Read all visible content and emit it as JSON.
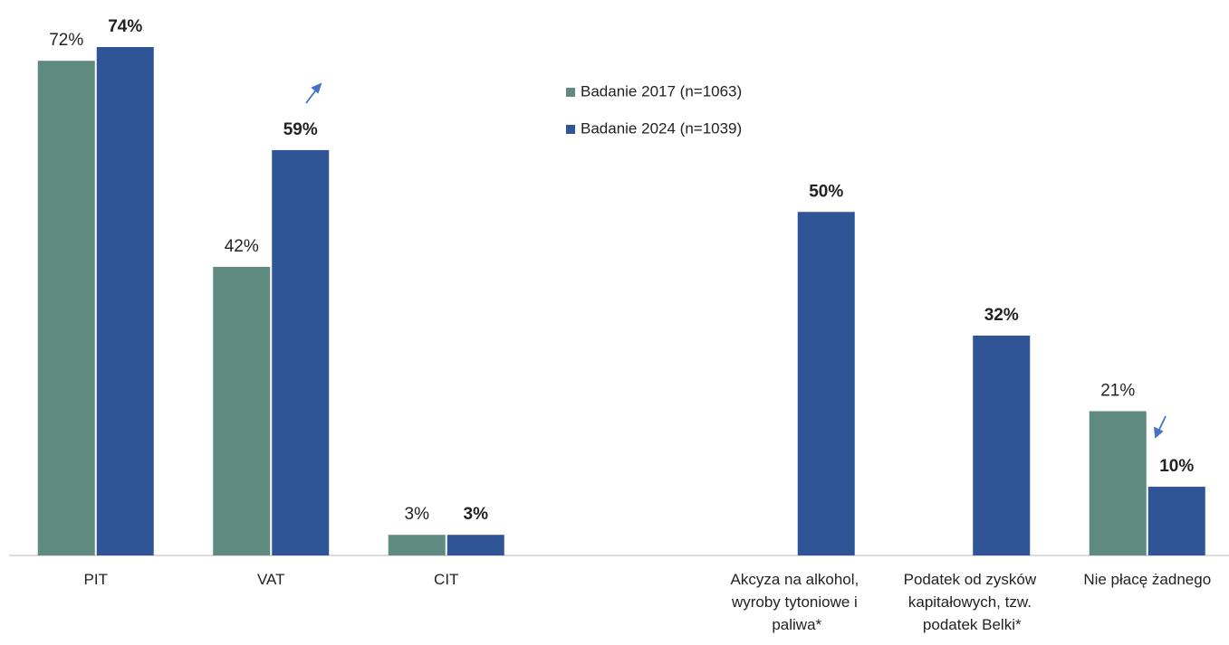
{
  "chart_data": {
    "type": "bar",
    "categories": [
      "PIT",
      "VAT",
      "CIT",
      null,
      "Akcyza na alkohol, wyroby tytoniowe i paliwa*",
      "Podatek od zysków kapitałowych, tzw. podatek Belki*",
      "Nie płacę żadnego"
    ],
    "series": [
      {
        "name": "Badanie 2017 (n=1063)",
        "color": "#5f8a80",
        "values": [
          72,
          42,
          3,
          null,
          null,
          null,
          21
        ],
        "value_labels": [
          "72%",
          "42%",
          "3%",
          null,
          null,
          null,
          "21%"
        ]
      },
      {
        "name": "Badanie 2024 (n=1039)",
        "color": "#2f5597",
        "values": [
          74,
          59,
          3,
          null,
          50,
          32,
          10
        ],
        "value_labels": [
          "74%",
          "59%",
          "3%",
          null,
          "50%",
          "32%",
          "10%"
        ]
      }
    ],
    "ylim": [
      0,
      74
    ],
    "legend": "top-center"
  }
}
